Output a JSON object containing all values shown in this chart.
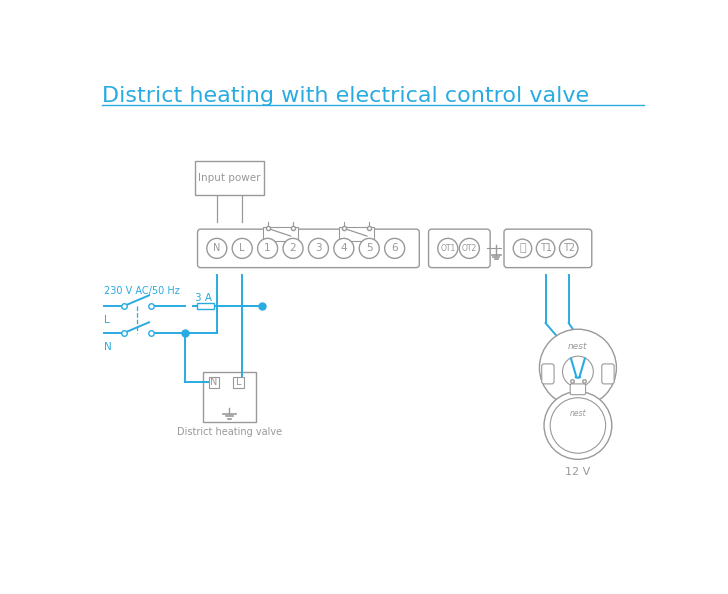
{
  "title": "District heating with electrical control valve",
  "title_color": "#29abe2",
  "title_fontsize": 16,
  "bg_color": "#ffffff",
  "line_color": "#29abe2",
  "component_color": "#999999",
  "terminal_labels": [
    "N",
    "L",
    "1",
    "2",
    "3",
    "4",
    "5",
    "6"
  ],
  "ot_labels": [
    "OT1",
    "OT2"
  ],
  "t_labels": [
    "T1",
    "T2"
  ],
  "input_power_label": "Input power",
  "district_heating_label": "District heating valve",
  "voltage_label": "230 V AC/50 Hz",
  "fuse_label": "3 A",
  "l_label": "L",
  "n_label": "N",
  "nest_label_12v": "12 V",
  "nest_label": "nest"
}
